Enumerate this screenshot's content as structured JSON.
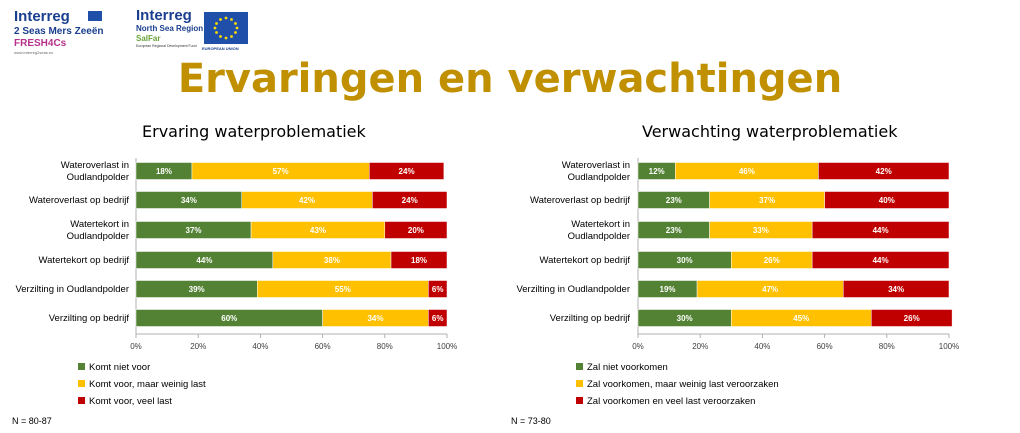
{
  "title": "Ervaringen en verwachtingen",
  "logos": {
    "left": {
      "brand": "Interreg",
      "line1": "2 Seas Mers Zeeën",
      "line2": "FRESH4Cs",
      "tagline": "www.interreg2seas.eu"
    },
    "right": {
      "brand": "Interreg",
      "line1": "North Sea Region",
      "line2": "SalFar",
      "tagline": "European Regional Development Fund",
      "eu": "EUROPEAN UNION"
    }
  },
  "colors": {
    "green": "#548235",
    "yellow": "#ffc000",
    "red": "#c00000",
    "title": "#c09000"
  },
  "chart_data": [
    {
      "type": "bar",
      "orientation": "horizontal",
      "stacked": true,
      "title": "Ervaring waterproblematiek",
      "categories": [
        "Wateroverlast in Oudlandpolder",
        "Wateroverlast op bedrijf",
        "Watertekort in Oudlandpolder",
        "Watertekort op bedrijf",
        "Verzilting in Oudlandpolder",
        "Verzilting op bedrijf"
      ],
      "category_lines": [
        [
          "Wateroverlast in",
          "Oudlandpolder"
        ],
        [
          "Wateroverlast op bedrijf"
        ],
        [
          "Watertekort in",
          "Oudlandpolder"
        ],
        [
          "Watertekort op bedrijf"
        ],
        [
          "Verzilting in Oudlandpolder"
        ],
        [
          "Verzilting op bedrijf"
        ]
      ],
      "series": [
        {
          "name": "Komt niet voor",
          "color": "#548235",
          "values": [
            18,
            34,
            37,
            44,
            39,
            60
          ]
        },
        {
          "name": "Komt voor, maar weinig last",
          "color": "#ffc000",
          "values": [
            57,
            42,
            43,
            38,
            55,
            34
          ]
        },
        {
          "name": "Komt voor, veel last",
          "color": "#c00000",
          "values": [
            24,
            24,
            20,
            18,
            6,
            6
          ]
        }
      ],
      "x_ticks": [
        "0%",
        "20%",
        "40%",
        "60%",
        "80%",
        "100%"
      ],
      "xlim": [
        0,
        100
      ],
      "legend_position": "bottom-left",
      "note": "N = 80-87"
    },
    {
      "type": "bar",
      "orientation": "horizontal",
      "stacked": true,
      "title": "Verwachting waterproblematiek",
      "categories": [
        "Wateroverlast in Oudlandpolder",
        "Wateroverlast op bedrijf",
        "Watertekort in Oudlandpolder",
        "Watertekort op bedrijf",
        "Verzilting in Oudlandpolder",
        "Verzilting op bedrijf"
      ],
      "category_lines": [
        [
          "Wateroverlast in",
          "Oudlandpolder"
        ],
        [
          "Wateroverlast op bedrijf"
        ],
        [
          "Watertekort in",
          "Oudlandpolder"
        ],
        [
          "Watertekort op bedrijf"
        ],
        [
          "Verzilting in Oudlandpolder"
        ],
        [
          "Verzilting op bedrijf"
        ]
      ],
      "series": [
        {
          "name": "Zal niet voorkomen",
          "color": "#548235",
          "values": [
            12,
            23,
            23,
            30,
            19,
            30
          ]
        },
        {
          "name": "Zal voorkomen, maar weinig last veroorzaken",
          "color": "#ffc000",
          "values": [
            46,
            37,
            33,
            26,
            47,
            45
          ]
        },
        {
          "name": "Zal voorkomen en veel last veroorzaken",
          "color": "#c00000",
          "values": [
            42,
            40,
            44,
            44,
            34,
            26
          ]
        }
      ],
      "x_ticks": [
        "0%",
        "20%",
        "40%",
        "60%",
        "80%",
        "100%"
      ],
      "xlim": [
        0,
        100
      ],
      "legend_position": "bottom-left",
      "note": "N = 73-80"
    }
  ]
}
